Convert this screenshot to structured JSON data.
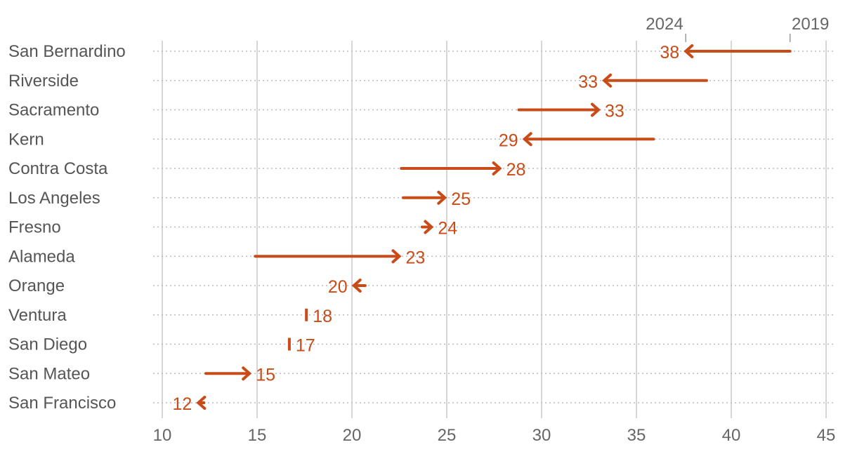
{
  "chart_data": {
    "type": "arrow-dot",
    "legend": {
      "end_label": "2024",
      "start_label": "2019"
    },
    "xlim": [
      10,
      45
    ],
    "x_ticks": [
      10,
      15,
      20,
      25,
      30,
      35,
      40,
      45
    ],
    "grid": true,
    "color": "#c84b18",
    "rows": [
      {
        "category": "San Bernardino",
        "v2019": 43.1,
        "v2024": 37.6,
        "label": "38"
      },
      {
        "category": "Riverside",
        "v2019": 38.7,
        "v2024": 33.3,
        "label": "33"
      },
      {
        "category": "Sacramento",
        "v2019": 28.8,
        "v2024": 33.0,
        "label": "33"
      },
      {
        "category": "Kern",
        "v2019": 35.9,
        "v2024": 29.1,
        "label": "29"
      },
      {
        "category": "Contra Costa",
        "v2019": 22.6,
        "v2024": 27.8,
        "label": "28"
      },
      {
        "category": "Los Angeles",
        "v2019": 22.7,
        "v2024": 24.9,
        "label": "25"
      },
      {
        "category": "Fresno",
        "v2019": 23.7,
        "v2024": 24.2,
        "label": "24"
      },
      {
        "category": "Alameda",
        "v2019": 14.9,
        "v2024": 22.5,
        "label": "23"
      },
      {
        "category": "Orange",
        "v2019": 20.7,
        "v2024": 20.1,
        "label": "20"
      },
      {
        "category": "Ventura",
        "v2019": 17.6,
        "v2024": 17.6,
        "label": "18"
      },
      {
        "category": "San Diego",
        "v2019": 16.7,
        "v2024": 16.7,
        "label": "17"
      },
      {
        "category": "San Mateo",
        "v2019": 12.3,
        "v2024": 14.6,
        "label": "15"
      },
      {
        "category": "San Francisco",
        "v2019": 12.2,
        "v2024": 11.9,
        "label": "12"
      }
    ]
  }
}
